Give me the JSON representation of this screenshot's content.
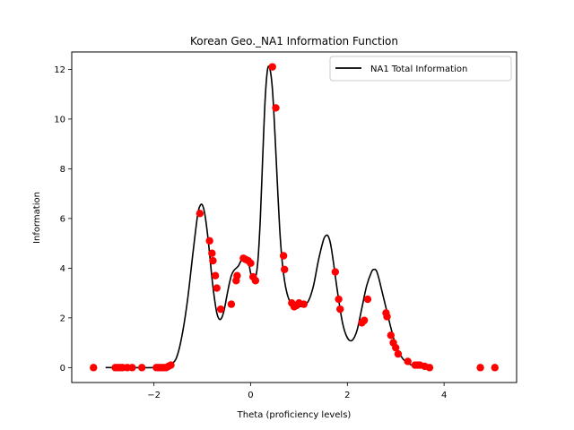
{
  "chart_data": {
    "type": "line",
    "title": "Korean Geo._NA1 Information Function",
    "xlabel": "Theta (proficiency levels)",
    "ylabel": "Information",
    "xlim": [
      -3.7,
      5.5
    ],
    "ylim": [
      -0.6,
      12.7
    ],
    "xticks": [
      -2,
      0,
      2,
      4
    ],
    "yticks": [
      0,
      2,
      4,
      6,
      8,
      10,
      12
    ],
    "xtick_labels": [
      "−2",
      "0",
      "2",
      "4"
    ],
    "ytick_labels": [
      "0",
      "2",
      "4",
      "6",
      "8",
      "10",
      "12"
    ],
    "grid": false,
    "legend": {
      "placement": "top-right",
      "entries": [
        "NA1 Total Information"
      ]
    },
    "series": [
      {
        "name": "NA1 Total Information",
        "kind": "line",
        "color": "#000000",
        "x": [
          -3.0,
          -2.5,
          -2.0,
          -1.8,
          -1.6,
          -1.5,
          -1.4,
          -1.3,
          -1.2,
          -1.1,
          -1.05,
          -1.0,
          -0.95,
          -0.9,
          -0.85,
          -0.8,
          -0.75,
          -0.7,
          -0.65,
          -0.6,
          -0.55,
          -0.5,
          -0.45,
          -0.4,
          -0.35,
          -0.3,
          -0.25,
          -0.2,
          -0.15,
          -0.1,
          -0.05,
          0.0,
          0.05,
          0.1,
          0.15,
          0.2,
          0.25,
          0.3,
          0.35,
          0.4,
          0.45,
          0.5,
          0.55,
          0.6,
          0.65,
          0.7,
          0.75,
          0.8,
          0.85,
          0.9,
          0.95,
          1.0,
          1.1,
          1.2,
          1.3,
          1.4,
          1.5,
          1.55,
          1.6,
          1.65,
          1.7,
          1.8,
          1.9,
          2.0,
          2.1,
          2.2,
          2.3,
          2.4,
          2.5,
          2.55,
          2.6,
          2.65,
          2.7,
          2.8,
          2.9,
          3.0,
          3.1,
          3.2,
          3.4,
          3.6,
          3.7
        ],
        "y": [
          0.0,
          0.0,
          0.0,
          0.05,
          0.2,
          0.6,
          1.5,
          2.8,
          4.5,
          6.1,
          6.5,
          6.55,
          6.2,
          5.5,
          4.6,
          3.6,
          2.8,
          2.2,
          1.95,
          2.0,
          2.3,
          2.8,
          3.3,
          3.7,
          3.9,
          4.0,
          4.1,
          4.3,
          4.4,
          4.4,
          4.3,
          3.8,
          3.5,
          3.6,
          4.3,
          6.0,
          8.5,
          10.8,
          12.0,
          12.0,
          11.2,
          9.5,
          7.5,
          5.6,
          4.3,
          3.5,
          3.0,
          2.7,
          2.5,
          2.45,
          2.45,
          2.45,
          2.5,
          2.7,
          3.3,
          4.3,
          5.1,
          5.3,
          5.3,
          5.0,
          4.4,
          3.0,
          1.8,
          1.2,
          1.1,
          1.5,
          2.4,
          3.3,
          3.85,
          3.95,
          3.9,
          3.6,
          3.2,
          2.4,
          1.6,
          0.9,
          0.5,
          0.25,
          0.05,
          0.01,
          0.0
        ]
      },
      {
        "name": "",
        "kind": "scatter",
        "color": "#ff0000",
        "x": [
          -3.25,
          -2.8,
          -2.75,
          -2.7,
          -2.65,
          -2.55,
          -2.45,
          -2.25,
          -1.95,
          -1.9,
          -1.85,
          -1.8,
          -1.75,
          -1.7,
          -1.65,
          -1.05,
          -0.85,
          -0.8,
          -0.78,
          -0.73,
          -0.7,
          -0.62,
          -0.4,
          -0.3,
          -0.28,
          -0.15,
          -0.1,
          -0.05,
          0.0,
          0.05,
          0.1,
          0.45,
          0.52,
          0.68,
          0.7,
          0.85,
          0.9,
          0.95,
          1.0,
          1.1,
          1.75,
          1.82,
          1.85,
          2.3,
          2.35,
          2.42,
          2.8,
          2.82,
          2.9,
          2.95,
          3.0,
          3.05,
          3.25,
          3.4,
          3.45,
          3.5,
          3.6,
          3.7,
          4.75,
          5.05
        ],
        "y": [
          0.0,
          0.0,
          0.0,
          0.0,
          0.0,
          0.0,
          0.0,
          0.0,
          0.0,
          0.0,
          0.0,
          0.0,
          0.0,
          0.05,
          0.1,
          6.2,
          5.1,
          4.6,
          4.3,
          3.7,
          3.2,
          2.35,
          2.55,
          3.5,
          3.7,
          4.4,
          4.35,
          4.3,
          4.2,
          3.65,
          3.5,
          12.1,
          10.45,
          4.5,
          3.95,
          2.6,
          2.45,
          2.5,
          2.6,
          2.55,
          3.85,
          2.75,
          2.35,
          1.8,
          1.9,
          2.75,
          2.2,
          2.05,
          1.3,
          1.0,
          0.8,
          0.55,
          0.25,
          0.1,
          0.1,
          0.1,
          0.05,
          0.0,
          0.0,
          0.0
        ]
      }
    ]
  }
}
